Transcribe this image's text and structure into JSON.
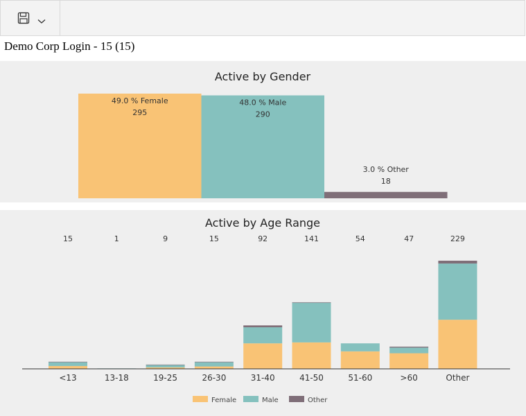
{
  "toolbar": {
    "save_icon": "save-icon",
    "dropdown_icon": "chevron-down-icon"
  },
  "report": {
    "title": "Demo Corp Login - 15 (15)"
  },
  "colors": {
    "female": "#f9c375",
    "male": "#85c1be",
    "other": "#7f6e78",
    "panel_bg": "#efefef"
  },
  "chart_data": [
    {
      "type": "bar",
      "title": "Active  by Gender",
      "categories": [
        "Female",
        "Male",
        "Other"
      ],
      "values": [
        295,
        290,
        18
      ],
      "percent_labels": [
        "49.0 % Female",
        "48.0 % Male",
        "3.0 % Other"
      ],
      "ylim": [
        0,
        295
      ]
    },
    {
      "type": "bar",
      "stacked": true,
      "title": "Active by Age Range",
      "categories": [
        "<13",
        "13-18",
        "19-25",
        "26-30",
        "31-40",
        "41-50",
        "51-60",
        ">60",
        "Other"
      ],
      "totals": [
        15,
        1,
        9,
        15,
        92,
        141,
        54,
        47,
        229
      ],
      "series": [
        {
          "name": "Female",
          "values": [
            6,
            0,
            3,
            5,
            54,
            56,
            37,
            33,
            104
          ]
        },
        {
          "name": "Male",
          "values": [
            8,
            1,
            5,
            9,
            34,
            84,
            17,
            12,
            119
          ]
        },
        {
          "name": "Other",
          "values": [
            1,
            0,
            1,
            1,
            4,
            1,
            0,
            2,
            6
          ]
        }
      ],
      "ylim": [
        0,
        229
      ],
      "legend": "bottom"
    }
  ]
}
